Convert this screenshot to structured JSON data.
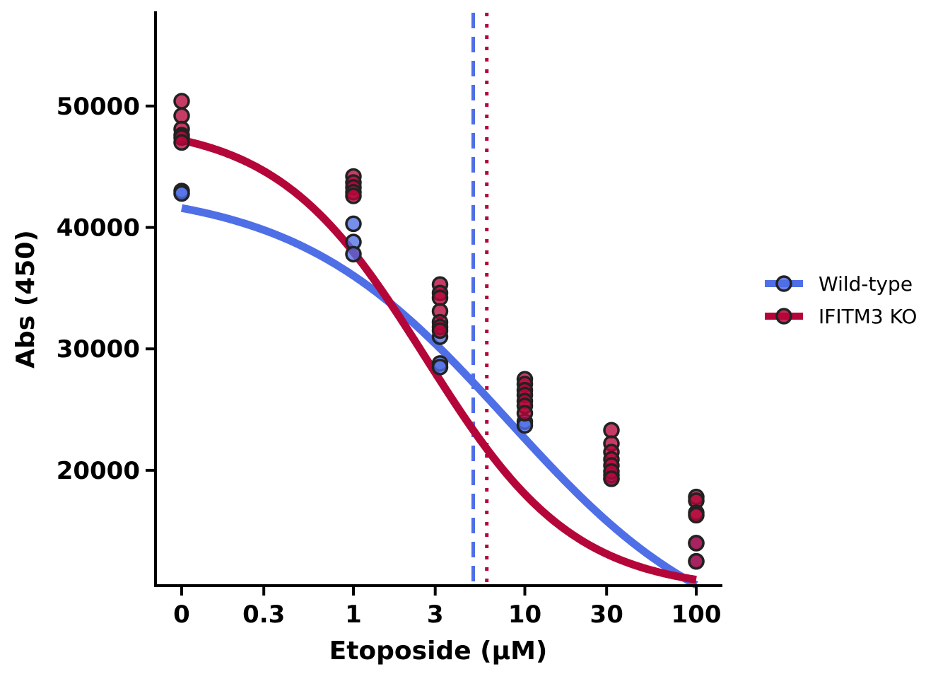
{
  "chart_data": {
    "type": "scatter",
    "title": "",
    "xlabel": "Etoposide (µM)",
    "ylabel": "Abs (450)",
    "x_scale": "log (with 0 at left)",
    "x_ticks": [
      {
        "value": 0,
        "label": "0"
      },
      {
        "value": 0.3,
        "label": "0.3"
      },
      {
        "value": 1,
        "label": "1"
      },
      {
        "value": 3,
        "label": "3"
      },
      {
        "value": 10,
        "label": "10"
      },
      {
        "value": 30,
        "label": "30"
      },
      {
        "value": 100,
        "label": "100"
      }
    ],
    "y_ticks": [
      {
        "value": 20000,
        "label": "20000"
      },
      {
        "value": 30000,
        "label": "30000"
      },
      {
        "value": 40000,
        "label": "40000"
      },
      {
        "value": 50000,
        "label": "50000"
      }
    ],
    "ylim": [
      10500,
      57800
    ],
    "grid": false,
    "legend_position": "right",
    "series": [
      {
        "name": "Wild-type",
        "color": "#4f6fe6",
        "line_style": "solid",
        "ic50": 5.0,
        "ic50_line_style": "dashed",
        "fit": {
          "top": 43300,
          "bottom": 5000,
          "ec50_log": 0.9,
          "hill_slope": 0.7
        },
        "points": [
          {
            "x": 0,
            "y": 43000
          },
          {
            "x": 0,
            "y": 42800
          },
          {
            "x": 1,
            "y": 40300
          },
          {
            "x": 1,
            "y": 38800
          },
          {
            "x": 1,
            "y": 37800
          },
          {
            "x": 3.2,
            "y": 31000
          },
          {
            "x": 3.2,
            "y": 28800
          },
          {
            "x": 3.2,
            "y": 28500
          },
          {
            "x": 10,
            "y": 24000
          },
          {
            "x": 10,
            "y": 23700
          },
          {
            "x": 32,
            "y": 19300
          },
          {
            "x": 32,
            "y": 19600
          },
          {
            "x": 100,
            "y": 14000
          },
          {
            "x": 100,
            "y": 12500
          }
        ]
      },
      {
        "name": "IFITM3 KO",
        "color": "#b5063a",
        "line_style": "solid",
        "ic50": 6.0,
        "ic50_line_style": "dotted",
        "fit": {
          "top": 48600,
          "bottom": 10000,
          "ec50_log": 0.42,
          "hill_slope": 1.0
        },
        "points": [
          {
            "x": 0,
            "y": 50400
          },
          {
            "x": 0,
            "y": 49200
          },
          {
            "x": 0,
            "y": 48100
          },
          {
            "x": 0,
            "y": 47600
          },
          {
            "x": 0,
            "y": 47400
          },
          {
            "x": 0,
            "y": 47000
          },
          {
            "x": 1,
            "y": 44200
          },
          {
            "x": 1,
            "y": 43700
          },
          {
            "x": 1,
            "y": 43300
          },
          {
            "x": 1,
            "y": 42900
          },
          {
            "x": 1,
            "y": 42600
          },
          {
            "x": 3.2,
            "y": 35300
          },
          {
            "x": 3.2,
            "y": 34600
          },
          {
            "x": 3.2,
            "y": 34200
          },
          {
            "x": 3.2,
            "y": 33100
          },
          {
            "x": 3.2,
            "y": 32200
          },
          {
            "x": 3.2,
            "y": 31800
          },
          {
            "x": 3.2,
            "y": 31500
          },
          {
            "x": 10,
            "y": 27500
          },
          {
            "x": 10,
            "y": 27100
          },
          {
            "x": 10,
            "y": 26600
          },
          {
            "x": 10,
            "y": 26200
          },
          {
            "x": 10,
            "y": 25700
          },
          {
            "x": 10,
            "y": 25300
          },
          {
            "x": 10,
            "y": 24700
          },
          {
            "x": 32,
            "y": 23300
          },
          {
            "x": 32,
            "y": 22200
          },
          {
            "x": 32,
            "y": 21500
          },
          {
            "x": 32,
            "y": 20900
          },
          {
            "x": 32,
            "y": 20400
          },
          {
            "x": 32,
            "y": 19900
          },
          {
            "x": 32,
            "y": 19300
          },
          {
            "x": 100,
            "y": 17800
          },
          {
            "x": 100,
            "y": 17500
          },
          {
            "x": 100,
            "y": 16500
          },
          {
            "x": 100,
            "y": 16300
          },
          {
            "x": 100,
            "y": 14000
          },
          {
            "x": 100,
            "y": 12500
          }
        ]
      }
    ]
  }
}
